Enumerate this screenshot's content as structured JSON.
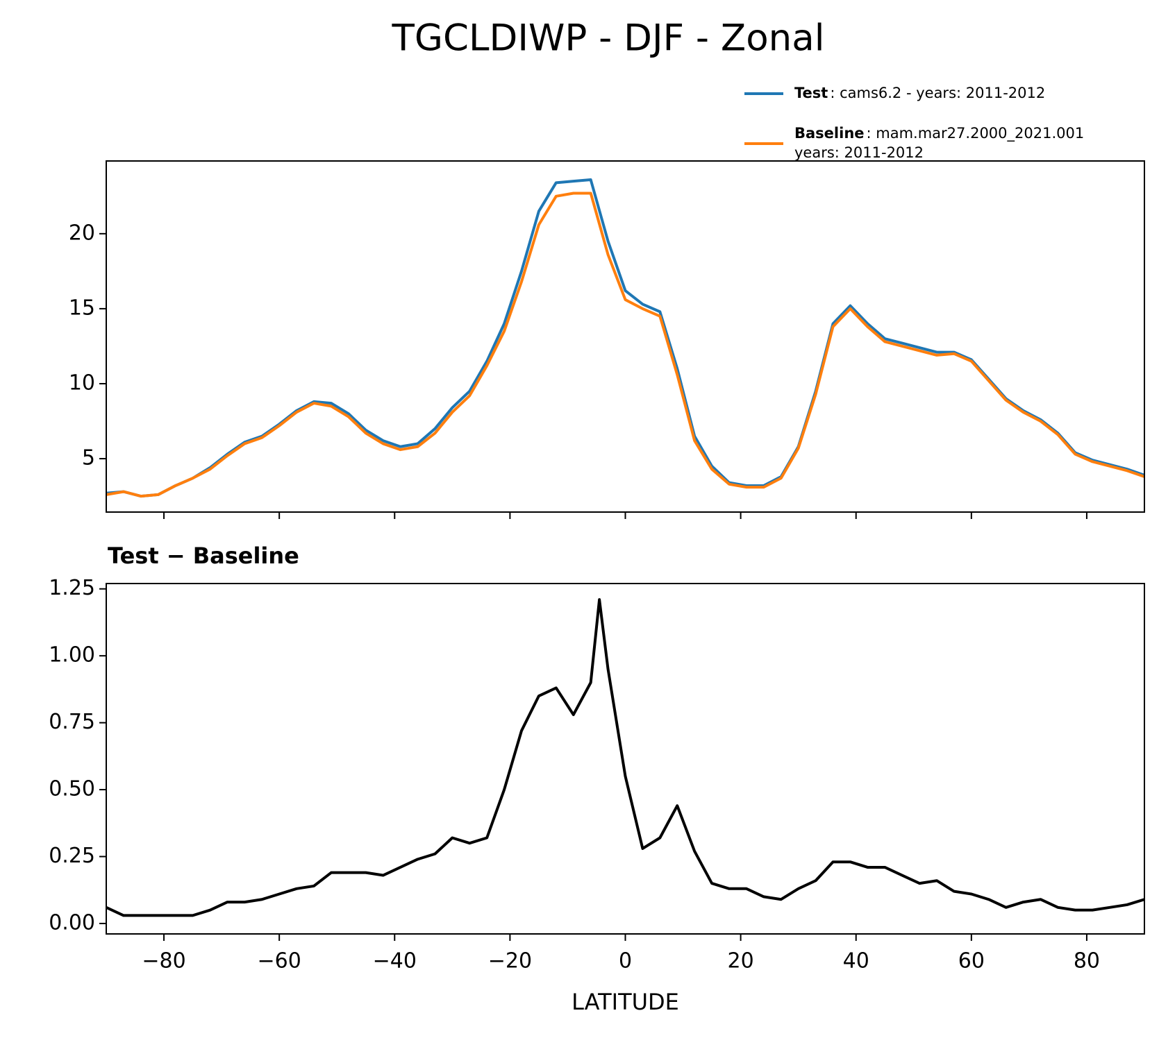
{
  "title": "TGCLDIWP - DJF - Zonal",
  "chart_data": [
    {
      "type": "line",
      "x": [
        -90,
        -87,
        -84,
        -81,
        -78,
        -75,
        -72,
        -69,
        -66,
        -63,
        -60,
        -57,
        -54,
        -51,
        -48,
        -45,
        -42,
        -39,
        -36,
        -33,
        -30,
        -27,
        -24,
        -21,
        -18,
        -15,
        -12,
        -9,
        -6,
        -3,
        0,
        3,
        6,
        9,
        12,
        15,
        18,
        21,
        24,
        27,
        30,
        33,
        36,
        39,
        42,
        45,
        48,
        51,
        54,
        57,
        60,
        63,
        66,
        69,
        72,
        75,
        78,
        81,
        84,
        87,
        90
      ],
      "series": [
        {
          "name": "Test",
          "description": [
            ": cams6.2 - years: 2011-2012"
          ],
          "color": "#1f77b4",
          "values": [
            2.7,
            2.8,
            2.5,
            2.6,
            3.2,
            3.7,
            4.4,
            5.3,
            6.1,
            6.5,
            7.3,
            8.2,
            8.8,
            8.7,
            8.0,
            6.9,
            6.2,
            5.8,
            6.0,
            7.0,
            8.4,
            9.5,
            11.5,
            14.0,
            17.5,
            21.5,
            23.4,
            23.5,
            23.6,
            19.5,
            16.2,
            15.3,
            14.8,
            11.0,
            6.5,
            4.5,
            3.4,
            3.2,
            3.2,
            3.8,
            5.8,
            9.5,
            14.0,
            15.2,
            14.0,
            13.0,
            12.7,
            12.4,
            12.1,
            12.1,
            11.6,
            10.3,
            9.0,
            8.2,
            7.6,
            6.7,
            5.4,
            4.9,
            4.6,
            4.3,
            3.9
          ]
        },
        {
          "name": "Baseline",
          "description": [
            ": mam.mar27.2000_2021.001",
            "years: 2011-2012"
          ],
          "color": "#ff7f0e",
          "values": [
            2.6,
            2.8,
            2.5,
            2.6,
            3.2,
            3.7,
            4.3,
            5.2,
            6.0,
            6.4,
            7.2,
            8.1,
            8.7,
            8.5,
            7.8,
            6.7,
            6.0,
            5.6,
            5.8,
            6.7,
            8.1,
            9.2,
            11.2,
            13.5,
            16.8,
            20.6,
            22.5,
            22.7,
            22.7,
            18.6,
            15.6,
            15.0,
            14.5,
            10.6,
            6.2,
            4.3,
            3.3,
            3.1,
            3.1,
            3.7,
            5.7,
            9.3,
            13.8,
            15.0,
            13.8,
            12.8,
            12.5,
            12.2,
            11.9,
            12.0,
            11.5,
            10.2,
            8.9,
            8.1,
            7.5,
            6.6,
            5.3,
            4.8,
            4.5,
            4.2,
            3.8
          ]
        }
      ],
      "xlim": [
        -90,
        90
      ],
      "ylim": [
        1.44,
        24.85
      ],
      "xticks": [
        -80,
        -60,
        -40,
        -20,
        0,
        20,
        40,
        60,
        80
      ],
      "yticks": [
        5,
        10,
        15,
        20
      ],
      "legend": "upper right outside"
    },
    {
      "type": "line",
      "title": "Test − Baseline",
      "xlabel": "LATITUDE",
      "x": [
        -90,
        -87,
        -84,
        -81,
        -78,
        -75,
        -72,
        -69,
        -66,
        -63,
        -60,
        -57,
        -54,
        -51,
        -48,
        -45,
        -42,
        -39,
        -36,
        -33,
        -30,
        -27,
        -24,
        -21,
        -18,
        -15,
        -12,
        -9,
        -6,
        -4.5,
        -3,
        0,
        3,
        6,
        9,
        12,
        15,
        18,
        21,
        24,
        27,
        30,
        33,
        36,
        39,
        42,
        45,
        48,
        51,
        54,
        57,
        60,
        63,
        66,
        69,
        72,
        75,
        78,
        81,
        84,
        87,
        90
      ],
      "series": [
        {
          "name": "Test − Baseline",
          "color": "#000000",
          "values": [
            0.06,
            0.03,
            0.03,
            0.03,
            0.03,
            0.03,
            0.05,
            0.08,
            0.08,
            0.09,
            0.11,
            0.13,
            0.14,
            0.19,
            0.19,
            0.19,
            0.18,
            0.21,
            0.24,
            0.26,
            0.32,
            0.3,
            0.32,
            0.5,
            0.72,
            0.85,
            0.88,
            0.78,
            0.9,
            1.21,
            0.95,
            0.55,
            0.28,
            0.32,
            0.44,
            0.27,
            0.15,
            0.13,
            0.13,
            0.1,
            0.09,
            0.13,
            0.16,
            0.23,
            0.23,
            0.21,
            0.21,
            0.18,
            0.15,
            0.16,
            0.12,
            0.11,
            0.09,
            0.06,
            0.08,
            0.09,
            0.06,
            0.05,
            0.05,
            0.06,
            0.07,
            0.09
          ]
        }
      ],
      "xlim": [
        -90,
        90
      ],
      "ylim": [
        -0.039,
        1.27
      ],
      "xticks": [
        {
          "value": -80,
          "label": "−80"
        },
        {
          "value": -60,
          "label": "−60"
        },
        {
          "value": -40,
          "label": "−40"
        },
        {
          "value": -20,
          "label": "−20"
        },
        0,
        20,
        40,
        60,
        80
      ],
      "yticks": [
        {
          "value": 0,
          "label": "0.00"
        },
        {
          "value": 0.25,
          "label": "0.25"
        },
        {
          "value": 0.5,
          "label": "0.50"
        },
        {
          "value": 0.75,
          "label": "0.75"
        },
        {
          "value": 1,
          "label": "1.00"
        },
        {
          "value": 1.25,
          "label": "1.25"
        }
      ]
    }
  ]
}
